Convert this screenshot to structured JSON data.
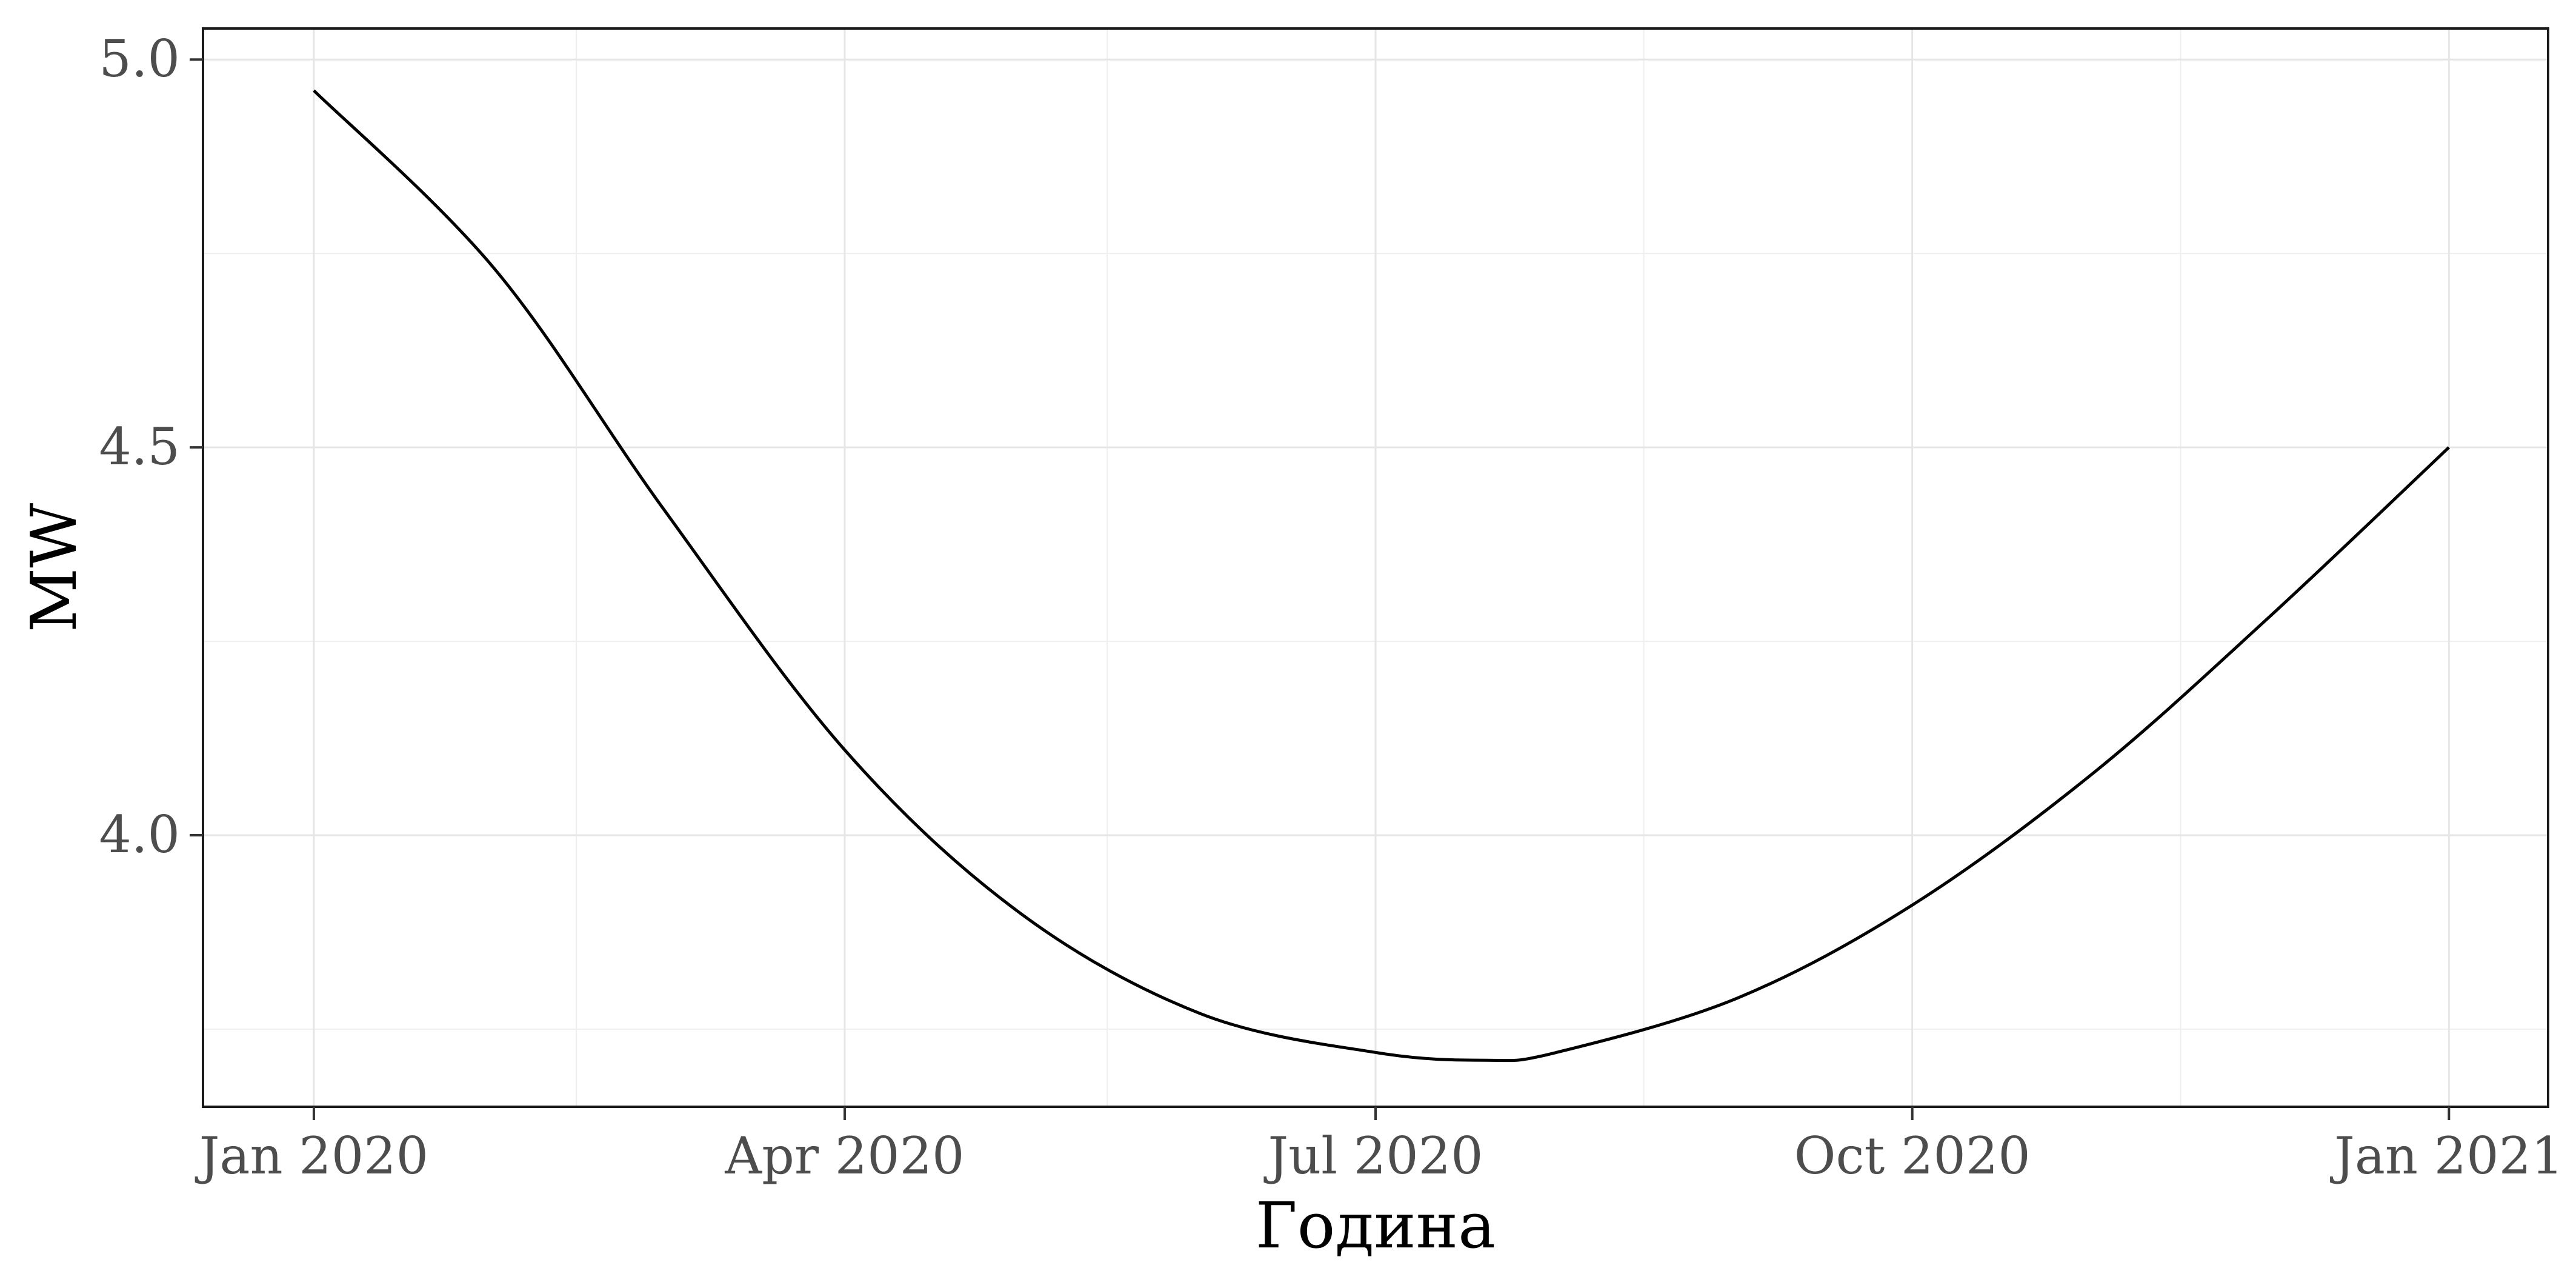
{
  "chart_data": {
    "type": "line",
    "title": "",
    "xlabel": "Година",
    "ylabel": "MW",
    "x_ticks": [
      {
        "date": "2020-01-01",
        "label": "Jan 2020"
      },
      {
        "date": "2020-04-01",
        "label": "Apr 2020"
      },
      {
        "date": "2020-07-01",
        "label": "Jul 2020"
      },
      {
        "date": "2020-10-01",
        "label": "Oct 2020"
      },
      {
        "date": "2021-01-01",
        "label": "Jan 2021"
      }
    ],
    "x_minor_ticks": [
      "2020-02-15",
      "2020-05-16",
      "2020-08-16",
      "2020-11-16"
    ],
    "y_ticks": [
      {
        "value": 4.0,
        "label": "4.0"
      },
      {
        "value": 4.5,
        "label": "4.5"
      },
      {
        "value": 5.0,
        "label": "5.0"
      }
    ],
    "y_minor_ticks": [
      3.75,
      4.25,
      4.75
    ],
    "xlim": [
      "2019-12-13",
      "2021-01-18"
    ],
    "ylim": [
      3.65,
      5.04
    ],
    "grid": true,
    "legend": "none",
    "line_color": "#000000",
    "series": [
      {
        "x": [
          "2020-01-01",
          "2020-02-01",
          "2020-03-01",
          "2020-04-01",
          "2020-05-01",
          "2020-06-01",
          "2020-07-01",
          "2020-07-20",
          "2020-08-01",
          "2020-09-01",
          "2020-10-01",
          "2020-11-01",
          "2020-12-01",
          "2021-01-01"
        ],
        "values": [
          4.96,
          4.73,
          4.42,
          4.11,
          3.9,
          3.77,
          3.72,
          3.71,
          3.72,
          3.79,
          3.91,
          4.08,
          4.28,
          4.5
        ]
      }
    ]
  }
}
